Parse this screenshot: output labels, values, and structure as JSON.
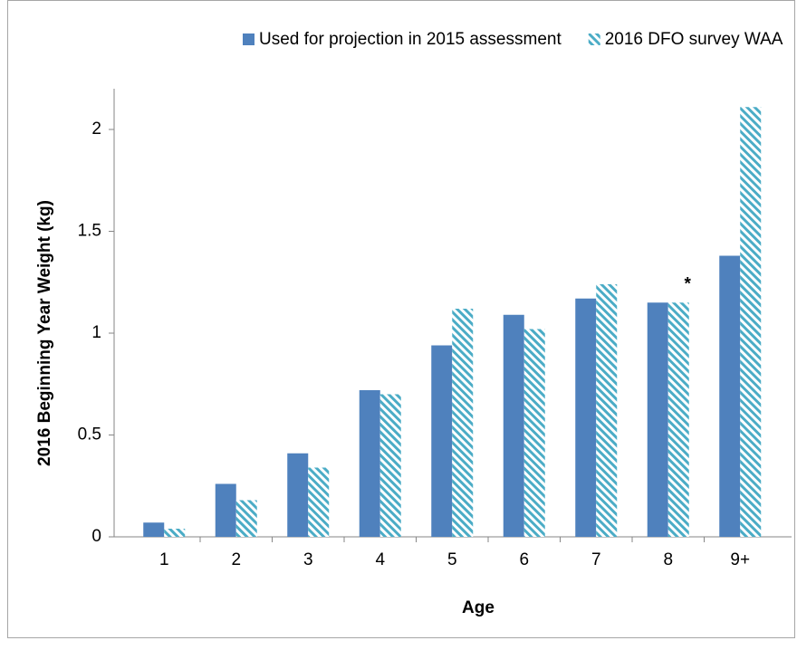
{
  "chart_data": {
    "type": "bar",
    "categories": [
      "1",
      "2",
      "3",
      "4",
      "5",
      "6",
      "7",
      "8",
      "9+"
    ],
    "series": [
      {
        "name": "Used for projection in 2015 assessment",
        "color": "#4f81bd",
        "values": [
          0.07,
          0.26,
          0.41,
          0.72,
          0.94,
          1.09,
          1.17,
          1.15,
          1.38
        ]
      },
      {
        "name": "2016 DFO survey WAA",
        "color": "#4bacc6",
        "pattern": "hatch",
        "values": [
          0.04,
          0.18,
          0.34,
          0.7,
          1.12,
          1.02,
          1.24,
          1.15,
          2.11
        ]
      }
    ],
    "x_label": "Age",
    "y_label": "2016 Beginning Year Weight (kg)",
    "ylim": [
      0,
      2.2
    ],
    "yticks": [
      0,
      0.5,
      1,
      1.5,
      2
    ],
    "grid": false,
    "legend": "top",
    "annotations": [
      {
        "text": "*",
        "category": "8",
        "series": "2016 DFO survey WAA"
      }
    ]
  }
}
